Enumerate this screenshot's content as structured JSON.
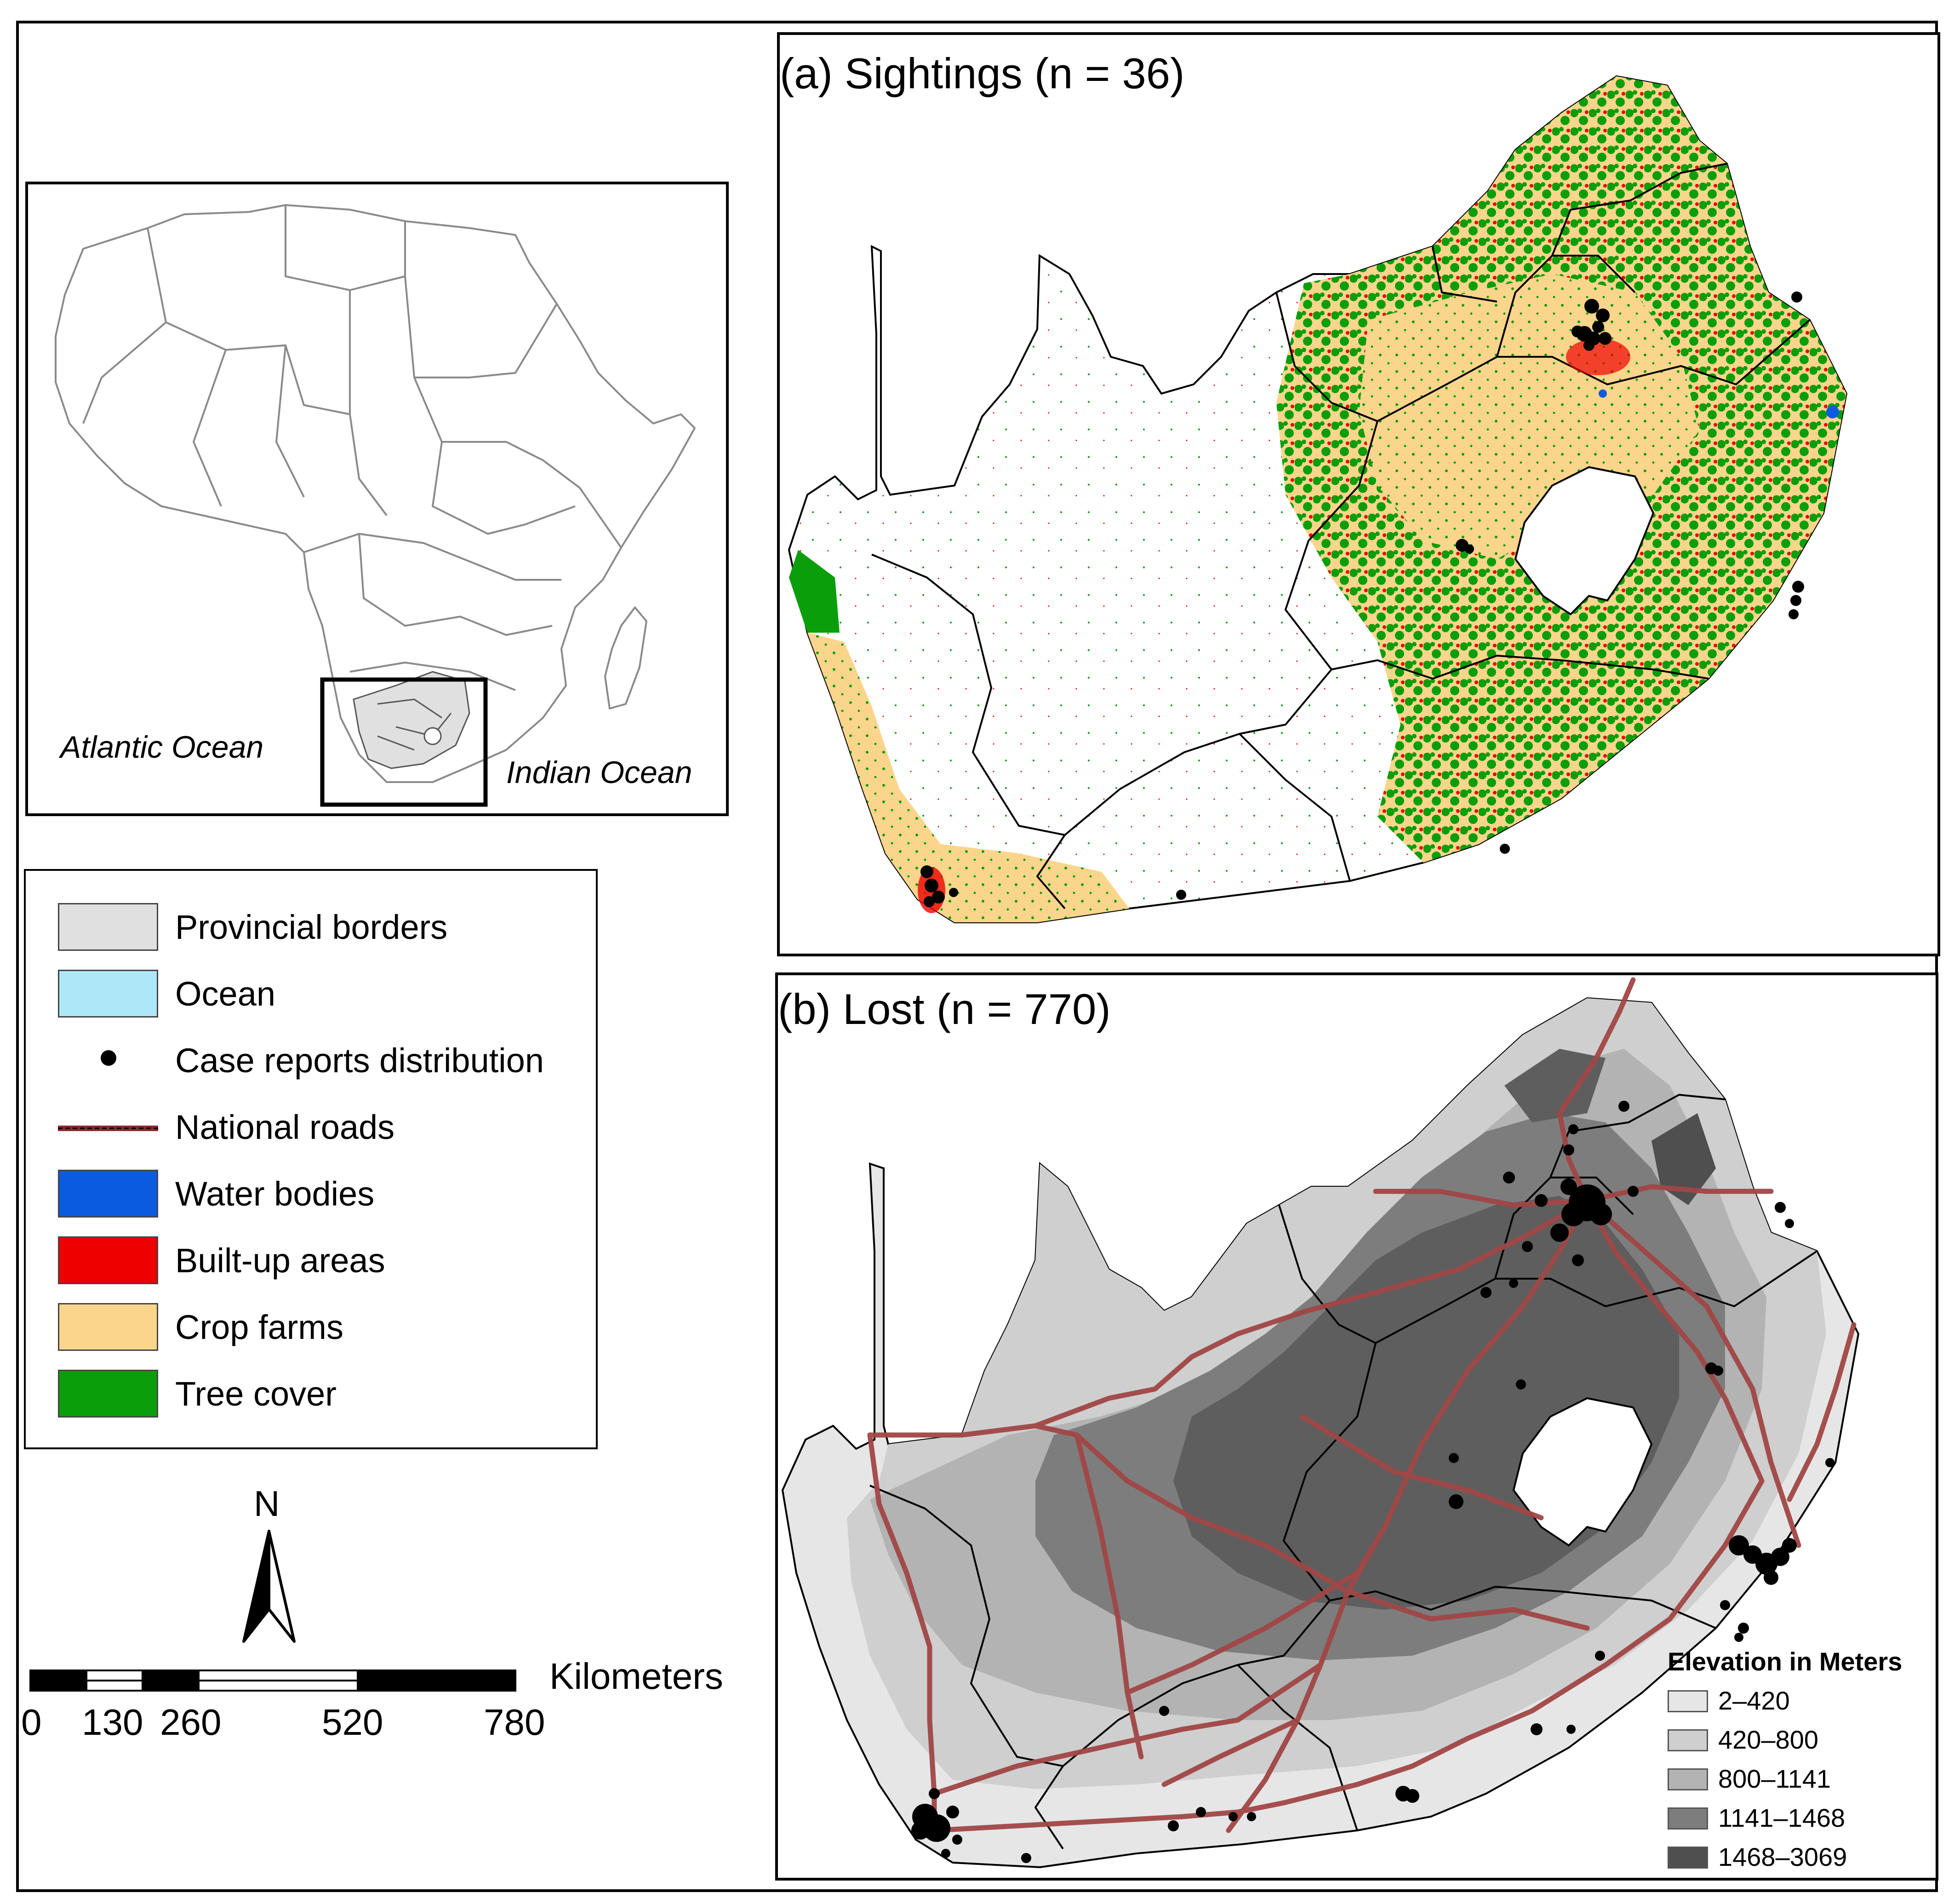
{
  "inset_map": {
    "label_atlantic": "Atlantic Ocean",
    "label_indian": "Indian Ocean"
  },
  "legend": {
    "items": [
      {
        "label": "Provincial borders",
        "color": "#e0e0e0"
      },
      {
        "label": "Ocean",
        "color": "#aee8f8"
      },
      {
        "label": "Case reports distribution",
        "color": "#000000"
      },
      {
        "label": "National roads",
        "color": "#8b2a2a"
      },
      {
        "label": "Water bodies",
        "color": "#0a5be0"
      },
      {
        "label": "Built-up areas",
        "color": "#ee0000"
      },
      {
        "label": "Crop farms",
        "color": "#fcd58c"
      },
      {
        "label": "Tree cover",
        "color": "#0b9e0b"
      }
    ]
  },
  "north_arrow": {
    "label": "N"
  },
  "scale_bar": {
    "unit": "Kilometers",
    "ticks": [
      "0",
      "130",
      "260",
      "520",
      "780"
    ]
  },
  "panel_a": {
    "title": "(a) Sightings (n = 36)"
  },
  "panel_b": {
    "title": "(b) Lost (n = 770)",
    "elevation_legend": {
      "title": "Elevation in Meters",
      "classes": [
        {
          "label": "2–420",
          "color": "#e6e6e6"
        },
        {
          "label": "420–800",
          "color": "#cfcfcf"
        },
        {
          "label": "800–1141",
          "color": "#b3b3b3"
        },
        {
          "label": "1141–1468",
          "color": "#7d7d7d"
        },
        {
          "label": "1468–3069",
          "color": "#4f4f4f"
        }
      ]
    }
  },
  "colors": {
    "lesotho": "#ffffff",
    "province_line": "#000000"
  }
}
